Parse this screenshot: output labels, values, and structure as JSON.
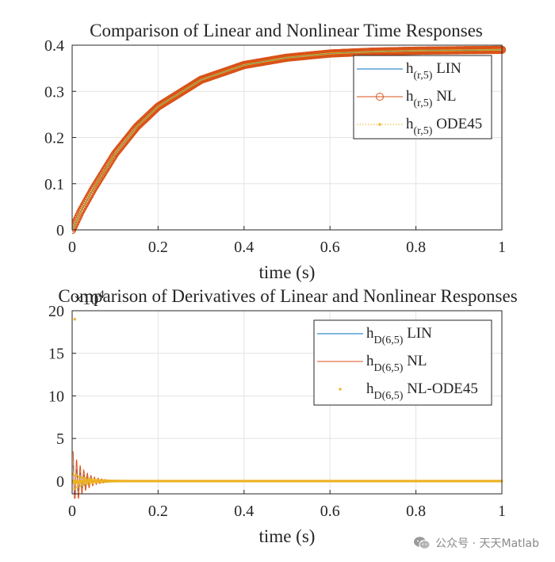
{
  "watermark": {
    "text": "公众号 · 天天Matlab",
    "icon": "wechat-icon"
  },
  "chart_data": [
    {
      "type": "line",
      "title": "Comparison of Linear and Nonlinear Time Responses",
      "xlabel": "time (s)",
      "ylabel": "",
      "xlim": [
        0,
        1
      ],
      "ylim": [
        0,
        0.4
      ],
      "xticks": [
        "0",
        "0.2",
        "0.4",
        "0.6",
        "0.8",
        "1"
      ],
      "yticks": [
        "0",
        "0.1",
        "0.2",
        "0.3",
        "0.4"
      ],
      "grid": true,
      "legend_position": "top-right",
      "x": [
        0,
        0.02,
        0.05,
        0.1,
        0.15,
        0.2,
        0.3,
        0.4,
        0.5,
        0.6,
        0.7,
        0.8,
        0.9,
        1.0
      ],
      "series": [
        {
          "name": "LIN",
          "label_base": "h",
          "label_sub": "(r,5)",
          "label_suffix": " LIN",
          "color": "#0072BD",
          "marker": "none",
          "values": [
            0,
            0.04,
            0.09,
            0.165,
            0.223,
            0.267,
            0.325,
            0.357,
            0.373,
            0.382,
            0.386,
            0.388,
            0.389,
            0.39
          ]
        },
        {
          "name": "NL",
          "label_base": "h",
          "label_sub": "(r,5)",
          "label_suffix": " NL",
          "color": "#D95319",
          "marker": "circle",
          "values": [
            0,
            0.04,
            0.09,
            0.165,
            0.223,
            0.267,
            0.325,
            0.357,
            0.373,
            0.382,
            0.386,
            0.388,
            0.389,
            0.39
          ]
        },
        {
          "name": "ODE45",
          "label_base": "h",
          "label_sub": "(r,5)",
          "label_suffix": " ODE45",
          "color": "#EDB120",
          "marker": "dot",
          "values": [
            0,
            0.04,
            0.09,
            0.165,
            0.223,
            0.267,
            0.325,
            0.357,
            0.373,
            0.382,
            0.386,
            0.388,
            0.389,
            0.39
          ]
        }
      ]
    },
    {
      "type": "line",
      "title": "Comparison of Derivatives of Linear and Nonlinear Responses",
      "xlabel": "time (s)",
      "ylabel": "",
      "exponent_label": "×10",
      "exponent_power": "4",
      "xlim": [
        0,
        1
      ],
      "ylim": [
        -1.5,
        20
      ],
      "xticks": [
        "0",
        "0.2",
        "0.4",
        "0.6",
        "0.8",
        "1"
      ],
      "yticks": [
        "0",
        "5",
        "10",
        "15",
        "20"
      ],
      "grid": true,
      "legend_position": "top-right",
      "x": [
        0,
        0.005,
        0.01,
        0.02,
        0.04,
        0.06,
        0.1,
        0.2,
        0.4,
        0.6,
        0.8,
        1.0
      ],
      "series": [
        {
          "name": "LIN",
          "label_base": "h",
          "label_sub": "D(6,5)",
          "label_suffix": " LIN",
          "color": "#0072BD",
          "marker": "none",
          "values": [
            0,
            2.0,
            1.0,
            0.4,
            0.2,
            0.1,
            0.03,
            0,
            0,
            0,
            0,
            0
          ]
        },
        {
          "name": "NL",
          "label_base": "h",
          "label_sub": "D(6,5)",
          "label_suffix": " NL",
          "color": "#D95319",
          "marker": "none",
          "values": [
            0,
            3.8,
            1.2,
            0.5,
            0.25,
            0.1,
            0.04,
            0,
            0,
            0,
            0,
            0
          ]
        },
        {
          "name": "NL-ODE45",
          "label_base": "h",
          "label_sub": "D(6,5)",
          "label_suffix": " NL-ODE45",
          "color": "#EDB120",
          "marker": "dot",
          "values": [
            0,
            19,
            1.2,
            0.5,
            0.25,
            0.1,
            0.04,
            0,
            0,
            0,
            0,
            0
          ]
        }
      ]
    }
  ]
}
